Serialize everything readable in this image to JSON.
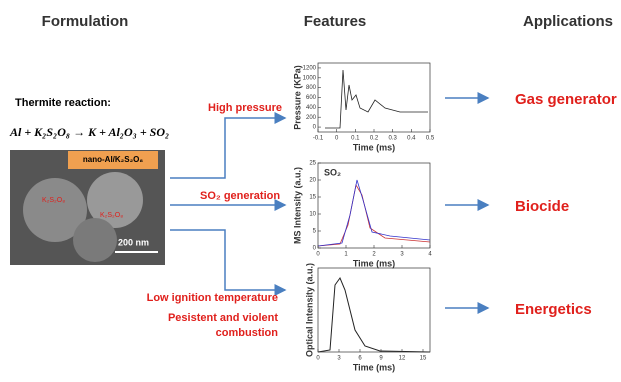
{
  "headers": {
    "formulation": "Formulation",
    "features": "Features",
    "applications": "Applications"
  },
  "reaction": {
    "title": "Thermite reaction:",
    "equation": "Al + K₂S₂O₈ → K + Al₂O₃ + SO₂"
  },
  "image": {
    "tag": "nano-Al/K₂S₂O₈",
    "labels": [
      "K₂S₂O₈",
      "K₂S₂O₈"
    ],
    "scale": "200 nm"
  },
  "features": [
    "High pressure",
    "SO₂ generation",
    "Low ignition temperature",
    "Pesistent and violent",
    "combustion"
  ],
  "charts": [
    {
      "xlabel": "Time (ms)",
      "ylabel": "Pressure (KPa)",
      "xlim": [
        -0.1,
        0.5
      ],
      "xticks": [
        -0.1,
        0.0,
        0.1,
        0.2,
        0.3,
        0.4,
        0.5
      ],
      "ylim": [
        -100,
        1300
      ],
      "yticks": [
        0,
        200,
        400,
        600,
        800,
        1000,
        1200
      ]
    },
    {
      "xlabel": "Time (ms)",
      "ylabel": "MS Intensity (a.u.)",
      "annotation": "SO₂",
      "xlim": [
        0,
        4
      ],
      "xticks": [
        0,
        1,
        2,
        3,
        4
      ],
      "ylim": [
        0,
        25
      ],
      "yticks": [
        0,
        5,
        10,
        15,
        20,
        25
      ]
    },
    {
      "xlabel": "Time (ms)",
      "ylabel": "Optical Intensity (a.u.)",
      "xlim": [
        0,
        16
      ],
      "xticks": [
        0,
        3,
        6,
        9,
        12,
        15
      ]
    }
  ],
  "applications": [
    "Gas generator",
    "Biocide",
    "Energetics"
  ]
}
